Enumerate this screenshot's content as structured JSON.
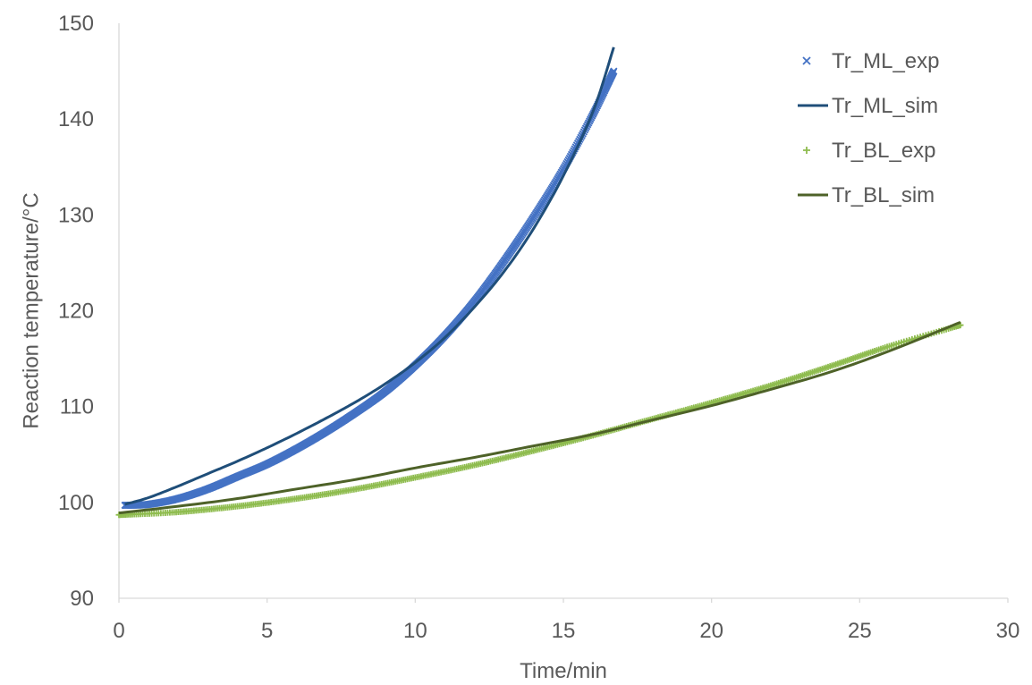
{
  "chart_data": {
    "type": "scatter",
    "xlabel": "Time/min",
    "ylabel": "Reaction temperature/°C",
    "xlim": [
      0,
      30
    ],
    "ylim": [
      90,
      150
    ],
    "xticks": [
      0,
      5,
      10,
      15,
      20,
      25,
      30
    ],
    "yticks": [
      90,
      100,
      110,
      120,
      130,
      140,
      150
    ],
    "grid": false,
    "legend_position": "top-right",
    "series": [
      {
        "name": "Tr_ML_exp",
        "style": "markers-x",
        "color": "#4472c4",
        "x": [
          0.2,
          1.0,
          2.0,
          3.0,
          4.0,
          5.0,
          6.0,
          7.0,
          8.0,
          9.0,
          10.0,
          11.0,
          12.0,
          13.0,
          14.0,
          15.0,
          16.0,
          16.7
        ],
        "y": [
          99.7,
          99.8,
          100.4,
          101.4,
          102.7,
          104.0,
          105.6,
          107.4,
          109.4,
          111.6,
          114.3,
          117.4,
          121.0,
          125.2,
          129.8,
          134.8,
          140.5,
          145.0
        ]
      },
      {
        "name": "Tr_ML_sim",
        "style": "line",
        "color": "#1f4e79",
        "x": [
          0.2,
          1.0,
          2.0,
          3.0,
          4.0,
          5.0,
          6.0,
          7.0,
          8.0,
          9.0,
          10.0,
          11.0,
          12.0,
          13.0,
          14.0,
          15.0,
          16.0,
          16.7
        ],
        "y": [
          99.8,
          100.5,
          101.7,
          103.0,
          104.3,
          105.7,
          107.2,
          108.8,
          110.5,
          112.4,
          114.6,
          117.2,
          120.4,
          124.1,
          128.6,
          134.1,
          140.8,
          147.5
        ]
      },
      {
        "name": "Tr_BL_exp",
        "style": "markers-plus",
        "color": "#8fbc4f",
        "x": [
          0.0,
          2.0,
          4.0,
          6.0,
          8.0,
          10.0,
          12.0,
          14.0,
          16.0,
          18.0,
          20.0,
          22.0,
          24.0,
          26.0,
          28.4
        ],
        "y": [
          98.7,
          99.0,
          99.6,
          100.4,
          101.4,
          102.6,
          103.9,
          105.4,
          107.0,
          108.7,
          110.4,
          112.2,
          114.2,
          116.3,
          118.5
        ]
      },
      {
        "name": "Tr_BL_sim",
        "style": "line",
        "color": "#4e6228",
        "x": [
          0.0,
          2.0,
          4.0,
          6.0,
          8.0,
          10.0,
          12.0,
          14.0,
          16.0,
          18.0,
          20.0,
          22.0,
          24.0,
          26.0,
          28.4
        ],
        "y": [
          98.9,
          99.6,
          100.4,
          101.4,
          102.4,
          103.6,
          104.7,
          105.9,
          107.1,
          108.6,
          110.1,
          111.8,
          113.6,
          115.8,
          118.8
        ]
      }
    ]
  }
}
